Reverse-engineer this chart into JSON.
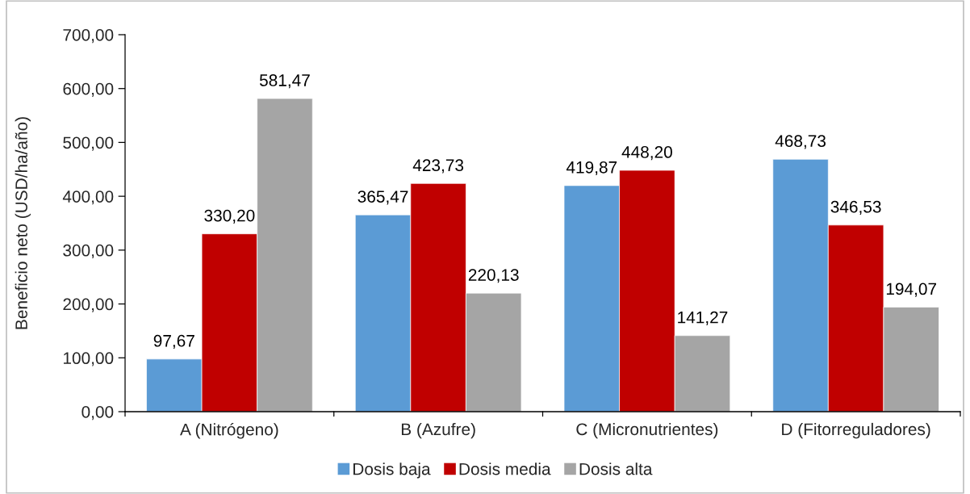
{
  "chart_data": {
    "type": "bar",
    "ylabel": "Beneficio neto (USD/ha/año)",
    "categories": [
      "A (Nitrógeno)",
      "B (Azufre)",
      "C (Micronutrientes)",
      "D (Fitorreguladores)"
    ],
    "series": [
      {
        "name": "Dosis baja",
        "color": "#5b9bd5",
        "values": [
          97.67,
          365.47,
          419.87,
          468.73
        ],
        "value_labels": [
          "97,67",
          "365,47",
          "419,87",
          "468,73"
        ]
      },
      {
        "name": "Dosis media",
        "color": "#c00000",
        "values": [
          330.2,
          423.73,
          448.2,
          346.53
        ],
        "value_labels": [
          "330,20",
          "423,73",
          "448,20",
          "346,53"
        ]
      },
      {
        "name": "Dosis alta",
        "color": "#a5a5a5",
        "values": [
          581.47,
          220.13,
          141.27,
          194.07
        ],
        "value_labels": [
          "581,47",
          "220,13",
          "141,27",
          "194,07"
        ]
      }
    ],
    "ylim": [
      0,
      700
    ],
    "yticks": [
      {
        "value": 0,
        "label": "0,00"
      },
      {
        "value": 100,
        "label": "100,00"
      },
      {
        "value": 200,
        "label": "200,00"
      },
      {
        "value": 300,
        "label": "300,00"
      },
      {
        "value": 400,
        "label": "400,00"
      },
      {
        "value": 500,
        "label": "500,00"
      },
      {
        "value": 600,
        "label": "600,00"
      },
      {
        "value": 700,
        "label": "700,00"
      }
    ],
    "grid": false,
    "legend": "bottom"
  }
}
